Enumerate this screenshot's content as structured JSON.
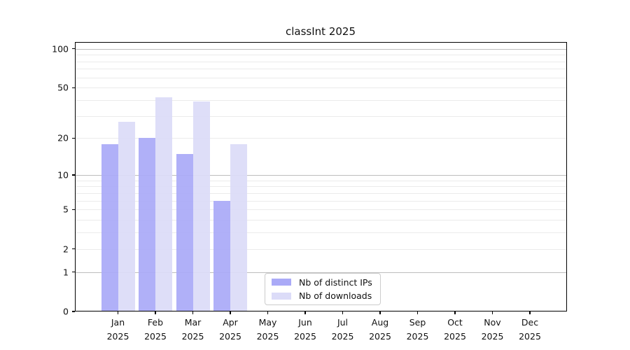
{
  "title": "classInt 2025",
  "chart_data": {
    "type": "bar",
    "title": "classInt 2025",
    "y_scale": "log10(value+1), 0 at baseline",
    "grid": true,
    "legend_position": "bottom-center-inside",
    "year": "2025",
    "categories": [
      "Jan",
      "Feb",
      "Mar",
      "Apr",
      "May",
      "Jun",
      "Jul",
      "Aug",
      "Sep",
      "Oct",
      "Nov",
      "Dec"
    ],
    "series": [
      {
        "name": "Nb of distinct IPs",
        "color": "#aaaaf7",
        "values": [
          18,
          20,
          15,
          6,
          0,
          0,
          0,
          0,
          0,
          0,
          0,
          0
        ]
      },
      {
        "name": "Nb of downloads",
        "color": "#dcdcf8",
        "values": [
          27,
          42,
          39,
          18,
          0,
          0,
          0,
          0,
          0,
          0,
          0,
          0
        ]
      }
    ],
    "y_tick_labels": [
      100,
      50,
      20,
      10,
      5,
      2,
      1,
      0
    ],
    "y_major_gridlines": [
      1,
      10,
      100
    ],
    "y_minor_gridlines": [
      2,
      3,
      4,
      5,
      6,
      7,
      8,
      9,
      20,
      30,
      40,
      50,
      60,
      70,
      80,
      90
    ],
    "ylim": [
      0,
      113
    ]
  },
  "colors": {
    "background": "#ffffff",
    "spine": "#000000",
    "major_grid": "#bdbdbd",
    "minor_grid": "#ebebeb",
    "text": "#111111"
  }
}
